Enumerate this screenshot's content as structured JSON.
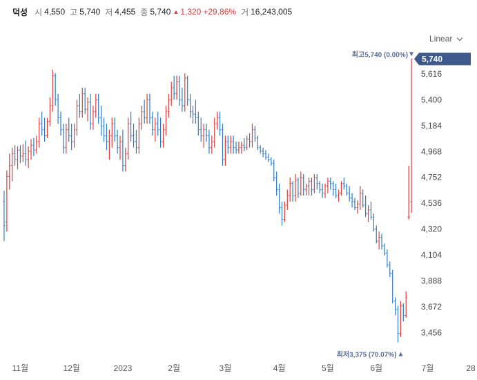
{
  "header": {
    "name": "덕성",
    "open_label": "시",
    "open_value": "4,550",
    "high_label": "고",
    "high_value": "5,740",
    "low_label": "저",
    "low_value": "4,455",
    "close_label": "종",
    "close_value": "5,740",
    "change_value": "1,320",
    "change_pct": "+29.86%",
    "volume_label": "거",
    "volume_value": "16,243,005"
  },
  "scale_button": {
    "label": "Linear"
  },
  "colors": {
    "up": "#e03b3b",
    "down": "#2f79c4",
    "tag": "#3e5a8c",
    "annotation": "#5a6e9a"
  },
  "chart_data": {
    "type": "bar",
    "style": "ohlc",
    "y_ticks": [
      "5,616",
      "5,400",
      "5,184",
      "4,968",
      "4,752",
      "4,536",
      "4,320",
      "4,104",
      "3,888",
      "3,672",
      "3,456"
    ],
    "ylim": [
      3320,
      5800
    ],
    "x_ticks": [
      "11월",
      "12월",
      "2023",
      "2월",
      "3월",
      "4월",
      "5월",
      "6월",
      "7월",
      "28"
    ],
    "x_tick_index": [
      6,
      25,
      44,
      63,
      82,
      102,
      120,
      138,
      157,
      173
    ],
    "last_price_label": "5,740",
    "last_price": 5740,
    "max_label": "최고",
    "max_value": "5,740",
    "max_pct": "(0.00%)",
    "min_label": "최저",
    "min_value": "3,375",
    "min_pct": "(70.07%)",
    "candles": [
      [
        4550,
        4640,
        4220,
        4350
      ],
      [
        4380,
        4810,
        4300,
        4760
      ],
      [
        4760,
        4950,
        4650,
        4850
      ],
      [
        4850,
        5000,
        4720,
        4950
      ],
      [
        4950,
        5020,
        4850,
        4900
      ],
      [
        4900,
        5010,
        4820,
        4980
      ],
      [
        4980,
        5020,
        4870,
        4930
      ],
      [
        4930,
        5030,
        4880,
        4950
      ],
      [
        4950,
        5060,
        4850,
        4900
      ],
      [
        4900,
        5010,
        4830,
        4970
      ],
      [
        4970,
        5070,
        4900,
        5020
      ],
      [
        5020,
        5080,
        4930,
        4980
      ],
      [
        4980,
        5100,
        4950,
        5050
      ],
      [
        5050,
        5250,
        5000,
        5200
      ],
      [
        5200,
        5300,
        5100,
        5150
      ],
      [
        5150,
        5250,
        5050,
        5100
      ],
      [
        5100,
        5250,
        5080,
        5220
      ],
      [
        5220,
        5420,
        5180,
        5350
      ],
      [
        5350,
        5650,
        5300,
        5600
      ],
      [
        5600,
        5620,
        5350,
        5400
      ],
      [
        5400,
        5450,
        5200,
        5250
      ],
      [
        5250,
        5300,
        5100,
        5150
      ],
      [
        5150,
        5200,
        4950,
        5000
      ],
      [
        5000,
        5200,
        4950,
        5150
      ],
      [
        5150,
        5250,
        5050,
        5100
      ],
      [
        5100,
        5200,
        4980,
        5050
      ],
      [
        5050,
        5200,
        5000,
        5150
      ],
      [
        5150,
        5400,
        5100,
        5350
      ],
      [
        5350,
        5450,
        5250,
        5300
      ],
      [
        5300,
        5500,
        5250,
        5450
      ],
      [
        5450,
        5500,
        5280,
        5320
      ],
      [
        5320,
        5420,
        5220,
        5380
      ],
      [
        5380,
        5450,
        5150,
        5200
      ],
      [
        5200,
        5350,
        5150,
        5300
      ],
      [
        5300,
        5450,
        5250,
        5400
      ],
      [
        5400,
        5450,
        5200,
        5250
      ],
      [
        5250,
        5350,
        5100,
        5180
      ],
      [
        5180,
        5250,
        5050,
        5100
      ],
      [
        5100,
        5200,
        4980,
        5050
      ],
      [
        5050,
        5150,
        4900,
        5100
      ],
      [
        5100,
        5250,
        5000,
        5200
      ],
      [
        5200,
        5250,
        5050,
        5100
      ],
      [
        5100,
        5150,
        4950,
        5000
      ],
      [
        5000,
        5100,
        4900,
        5050
      ],
      [
        5050,
        5150,
        4800,
        4850
      ],
      [
        4850,
        5000,
        4800,
        4950
      ],
      [
        4950,
        5250,
        4900,
        5200
      ],
      [
        5200,
        5300,
        5050,
        5100
      ],
      [
        5100,
        5200,
        5000,
        5050
      ],
      [
        5050,
        5150,
        4950,
        5000
      ],
      [
        5000,
        5250,
        4950,
        5200
      ],
      [
        5200,
        5350,
        5150,
        5300
      ],
      [
        5300,
        5400,
        5200,
        5250
      ],
      [
        5250,
        5450,
        5200,
        5400
      ],
      [
        5400,
        5450,
        5200,
        5250
      ],
      [
        5250,
        5300,
        5100,
        5150
      ],
      [
        5150,
        5250,
        5050,
        5200
      ],
      [
        5200,
        5300,
        5100,
        5150
      ],
      [
        5150,
        5250,
        5000,
        5050
      ],
      [
        5050,
        5200,
        5000,
        5150
      ],
      [
        5150,
        5350,
        5100,
        5300
      ],
      [
        5300,
        5450,
        5250,
        5400
      ],
      [
        5400,
        5550,
        5350,
        5500
      ],
      [
        5500,
        5600,
        5400,
        5450
      ],
      [
        5450,
        5600,
        5400,
        5550
      ],
      [
        5550,
        5600,
        5350,
        5400
      ],
      [
        5400,
        5500,
        5300,
        5350
      ],
      [
        5350,
        5620,
        5300,
        5580
      ],
      [
        5580,
        5600,
        5350,
        5400
      ],
      [
        5400,
        5450,
        5250,
        5300
      ],
      [
        5300,
        5350,
        5200,
        5280
      ],
      [
        5280,
        5400,
        5200,
        5250
      ],
      [
        5250,
        5300,
        5100,
        5150
      ],
      [
        5150,
        5250,
        5050,
        5100
      ],
      [
        5100,
        5200,
        5000,
        5150
      ],
      [
        5150,
        5200,
        5050,
        5100
      ],
      [
        5100,
        5150,
        4950,
        5000
      ],
      [
        5000,
        5100,
        4950,
        5050
      ],
      [
        5050,
        5250,
        5000,
        5200
      ],
      [
        5200,
        5300,
        5150,
        5250
      ],
      [
        5250,
        5300,
        5100,
        5150
      ],
      [
        5150,
        5200,
        4850,
        4900
      ],
      [
        4900,
        5100,
        4850,
        5050
      ],
      [
        5050,
        5100,
        4950,
        5000
      ],
      [
        5000,
        5100,
        4950,
        5050
      ],
      [
        5050,
        5100,
        4950,
        5000
      ],
      [
        5000,
        5050,
        4950,
        4980
      ],
      [
        4980,
        5050,
        4950,
        5000
      ],
      [
        5000,
        5050,
        4950,
        5020
      ],
      [
        5020,
        5080,
        4970,
        5000
      ],
      [
        5000,
        5100,
        4980,
        5070
      ],
      [
        5070,
        5120,
        5000,
        5050
      ],
      [
        5050,
        5200,
        5000,
        5150
      ],
      [
        5150,
        5180,
        5050,
        5080
      ],
      [
        5080,
        5100,
        4980,
        5000
      ],
      [
        5000,
        5020,
        4950,
        4970
      ],
      [
        4970,
        5000,
        4920,
        4950
      ],
      [
        4950,
        4980,
        4900,
        4920
      ],
      [
        4920,
        4950,
        4880,
        4900
      ],
      [
        4900,
        4920,
        4850,
        4870
      ],
      [
        4870,
        4900,
        4720,
        4750
      ],
      [
        4750,
        4800,
        4600,
        4650
      ],
      [
        4650,
        4700,
        4450,
        4500
      ],
      [
        4500,
        4550,
        4350,
        4400
      ],
      [
        4400,
        4550,
        4380,
        4520
      ],
      [
        4520,
        4650,
        4480,
        4600
      ],
      [
        4600,
        4750,
        4550,
        4700
      ],
      [
        4700,
        4720,
        4550,
        4600
      ],
      [
        4600,
        4780,
        4550,
        4730
      ],
      [
        4730,
        4750,
        4580,
        4620
      ],
      [
        4620,
        4800,
        4600,
        4750
      ],
      [
        4750,
        4780,
        4600,
        4650
      ],
      [
        4650,
        4700,
        4600,
        4680
      ],
      [
        4680,
        4750,
        4600,
        4720
      ],
      [
        4720,
        4750,
        4600,
        4650
      ],
      [
        4650,
        4780,
        4620,
        4750
      ],
      [
        4750,
        4780,
        4650,
        4700
      ],
      [
        4700,
        4720,
        4620,
        4650
      ],
      [
        4650,
        4700,
        4580,
        4620
      ],
      [
        4620,
        4700,
        4580,
        4680
      ],
      [
        4680,
        4750,
        4620,
        4720
      ],
      [
        4720,
        4750,
        4650,
        4700
      ],
      [
        4700,
        4720,
        4600,
        4650
      ],
      [
        4650,
        4700,
        4580,
        4600
      ],
      [
        4600,
        4650,
        4550,
        4620
      ],
      [
        4620,
        4720,
        4600,
        4700
      ],
      [
        4700,
        4750,
        4650,
        4680
      ],
      [
        4680,
        4700,
        4600,
        4620
      ],
      [
        4620,
        4680,
        4550,
        4580
      ],
      [
        4580,
        4620,
        4500,
        4550
      ],
      [
        4550,
        4580,
        4480,
        4500
      ],
      [
        4500,
        4560,
        4450,
        4530
      ],
      [
        4530,
        4680,
        4480,
        4620
      ],
      [
        4620,
        4650,
        4500,
        4520
      ],
      [
        4520,
        4600,
        4420,
        4450
      ],
      [
        4450,
        4520,
        4380,
        4480
      ],
      [
        4480,
        4550,
        4400,
        4420
      ],
      [
        4420,
        4450,
        4300,
        4320
      ],
      [
        4320,
        4350,
        4200,
        4220
      ],
      [
        4220,
        4300,
        4150,
        4250
      ],
      [
        4250,
        4280,
        4150,
        4180
      ],
      [
        4180,
        4200,
        4100,
        4120
      ],
      [
        4120,
        4150,
        4000,
        4020
      ],
      [
        4020,
        4050,
        3920,
        3950
      ],
      [
        3950,
        3980,
        3700,
        3720
      ],
      [
        3720,
        3750,
        3600,
        3650
      ],
      [
        3650,
        3680,
        3375,
        3450
      ],
      [
        3450,
        3720,
        3420,
        3680
      ],
      [
        3680,
        3700,
        3550,
        3600
      ],
      [
        3600,
        3800,
        3580,
        3750
      ],
      [
        4420,
        4850,
        4400,
        4420
      ],
      [
        4550,
        5740,
        4455,
        5740
      ]
    ]
  }
}
